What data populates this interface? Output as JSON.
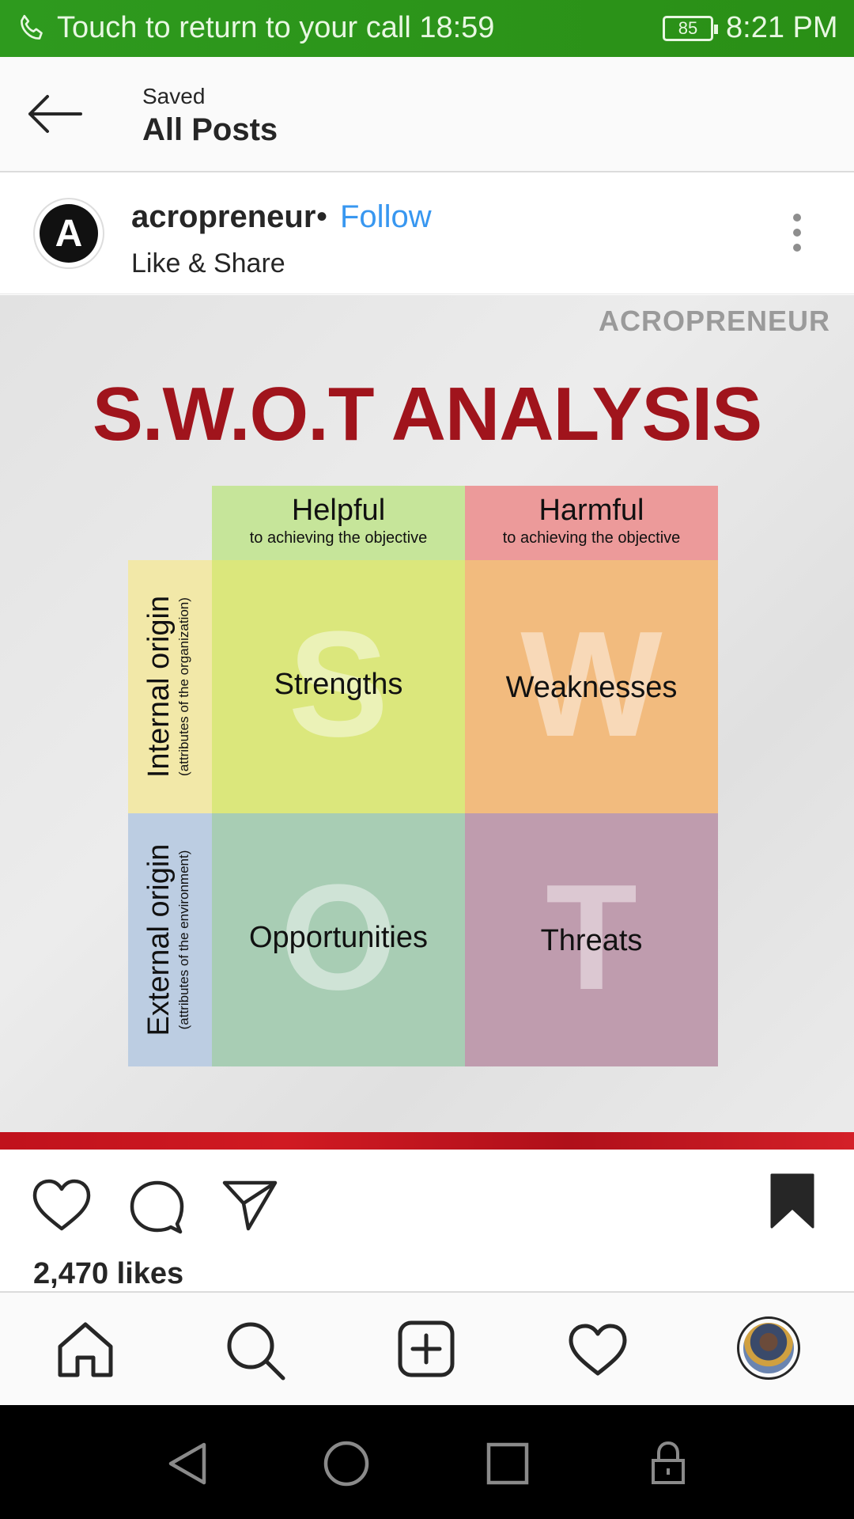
{
  "status_bar": {
    "call_banner": "Touch to return to your call 18:59",
    "battery": "85",
    "time": "8:21 PM"
  },
  "header": {
    "subtitle": "Saved",
    "title": "All Posts"
  },
  "post": {
    "username": "acropreneur",
    "separator": "•",
    "follow_label": "Follow",
    "location": "Like & Share",
    "avatar_letter": "A",
    "likes": "2,470 likes",
    "image": {
      "watermark": "ACROPRENEUR",
      "title": "S.W.O.T ANALYSIS",
      "col_headers": [
        {
          "main": "Helpful",
          "small": "to achieving the objective"
        },
        {
          "main": "Harmful",
          "small": "to achieving the objective"
        }
      ],
      "row_headers": [
        {
          "main": "Internal origin",
          "small": "(attributes of the organization)"
        },
        {
          "main": "External origin",
          "small": "(attributes of the environment)"
        }
      ],
      "quadrants": [
        {
          "letter": "S",
          "label": "Strengths"
        },
        {
          "letter": "W",
          "label": "Weaknesses"
        },
        {
          "letter": "O",
          "label": "Opportunities"
        },
        {
          "letter": "T",
          "label": "Threats"
        }
      ],
      "colors": {
        "helpful": "#c6e59a",
        "harmful": "#ec9a9a",
        "internal": "#f2e8a8",
        "external": "#bccde2",
        "strengths": "#dbe77c",
        "weaknesses": "#f2bb7e",
        "opportunities": "#a8cdb4",
        "threats": "#bf9cae"
      }
    }
  },
  "icons": {
    "actions": [
      "heart-icon",
      "comment-icon",
      "share-icon",
      "bookmark-icon"
    ],
    "nav": [
      "home-icon",
      "search-icon",
      "add-post-icon",
      "activity-heart-icon",
      "profile-avatar"
    ],
    "system": [
      "back-triangle-icon",
      "home-circle-icon",
      "recents-square-icon",
      "lock-icon"
    ]
  }
}
